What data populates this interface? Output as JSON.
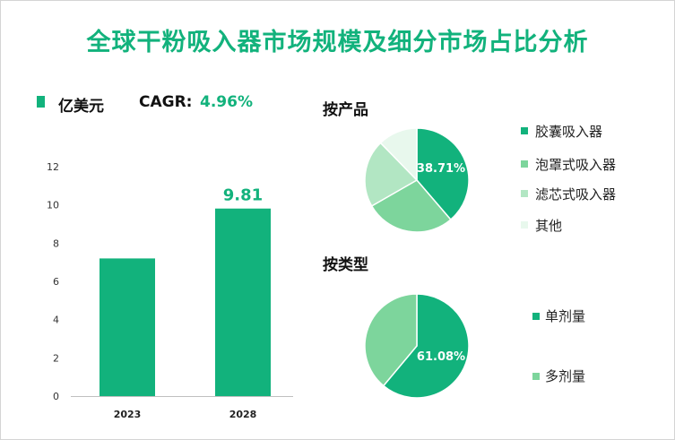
{
  "title": "全球干粉吸入器市场规模及细分市场占比分析",
  "bar_chart": {
    "unit": "亿美元",
    "cagr_label": "CAGR:",
    "cagr_value": "4.96%"
  },
  "product_section": {
    "title": "按产品",
    "legend": [
      "胶囊吸入器",
      "泡罩式吸入器",
      "滤芯式吸入器",
      "其他"
    ]
  },
  "type_section": {
    "title": "按类型",
    "legend": [
      "单剂量",
      "多剂量"
    ]
  },
  "colors": {
    "accent": "#12b27c",
    "slices_product": [
      "#12b27c",
      "#7dd59c",
      "#b2e6c3",
      "#e8f8ed"
    ],
    "slices_type": [
      "#12b27c",
      "#7dd59c"
    ]
  },
  "chart_data": [
    {
      "type": "bar",
      "categories": [
        "2023",
        "2028"
      ],
      "values": [
        7.2,
        9.81
      ],
      "data_labels": [
        "",
        "9.81"
      ],
      "ylim": [
        0,
        12
      ],
      "yticks": [
        0,
        2,
        4,
        6,
        8,
        10,
        12
      ],
      "grid": false
    },
    {
      "type": "pie",
      "labels": [
        "胶囊吸入器",
        "泡罩式吸入器",
        "滤芯式吸入器",
        "其他"
      ],
      "values": [
        38.71,
        28.0,
        21.0,
        12.29
      ],
      "data_labels": [
        "38.71%",
        "",
        "",
        ""
      ]
    },
    {
      "type": "pie",
      "labels": [
        "单剂量",
        "多剂量"
      ],
      "values": [
        61.08,
        38.92
      ],
      "data_labels": [
        "61.08%",
        ""
      ]
    }
  ]
}
